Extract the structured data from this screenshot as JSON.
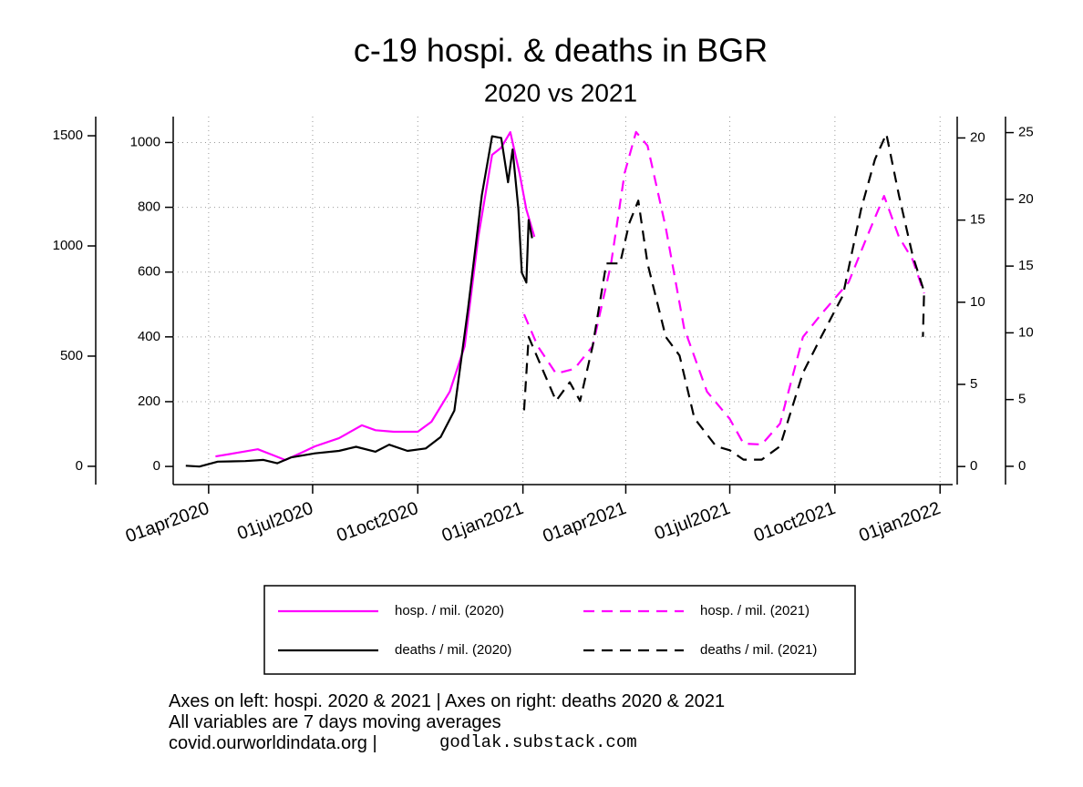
{
  "chart_data": {
    "type": "line",
    "title": "c-19 hospi. & deaths in BGR",
    "subtitle": "2020 vs 2021",
    "xlim": [
      "2020-03-01",
      "2022-01-12"
    ],
    "xticks": [
      {
        "value": "2020-04-01",
        "label": "01apr2020"
      },
      {
        "value": "2020-07-01",
        "label": "01jul2020"
      },
      {
        "value": "2020-10-01",
        "label": "01oct2020"
      },
      {
        "value": "2021-01-01",
        "label": "01jan2021"
      },
      {
        "value": "2021-04-01",
        "label": "01apr2021"
      },
      {
        "value": "2021-07-01",
        "label": "01jul2021"
      },
      {
        "value": "2021-10-01",
        "label": "01oct2021"
      },
      {
        "value": "2022-01-01",
        "label": "01jan2022"
      }
    ],
    "y_axes": [
      {
        "side": "left",
        "ylim": [
          -83,
          1587
        ],
        "yticks": [
          0,
          500,
          1000,
          1500
        ]
      },
      {
        "side": "left",
        "ylim": [
          -56,
          1080
        ],
        "yticks": [
          0,
          200,
          400,
          600,
          800,
          1000
        ],
        "grid": true
      },
      {
        "side": "right",
        "ylim": [
          -1.1,
          21.3
        ],
        "yticks": [
          0,
          5,
          10,
          15,
          20
        ]
      },
      {
        "side": "right",
        "ylim": [
          -1.37,
          26.2
        ],
        "yticks": [
          0,
          5,
          10,
          15,
          20,
          25
        ]
      }
    ],
    "grid": true,
    "series": [
      {
        "name": "hosp. / mil. (2020)",
        "color": "#ff00ff",
        "dashed": false,
        "axis": 1,
        "x": [
          "2020-04-07",
          "2020-04-26",
          "2020-05-14",
          "2020-05-28",
          "2020-06-07",
          "2020-06-21",
          "2020-07-03",
          "2020-07-24",
          "2020-08-13",
          "2020-08-25",
          "2020-09-10",
          "2020-10-01",
          "2020-10-13",
          "2020-10-29",
          "2020-11-11",
          "2020-11-23",
          "2020-12-05",
          "2020-12-13",
          "2020-12-21",
          "2020-12-29",
          "2021-01-04",
          "2021-01-11"
        ],
        "values": [
          31,
          42,
          53,
          34,
          20,
          42,
          62,
          87,
          127,
          112,
          107,
          107,
          138,
          231,
          371,
          709,
          962,
          984,
          1032,
          905,
          793,
          709
        ]
      },
      {
        "name": "deaths / mil. (2020)",
        "color": "#000000",
        "dashed": false,
        "axis": 2,
        "x": [
          "2020-03-12",
          "2020-03-24",
          "2020-04-09",
          "2020-05-03",
          "2020-05-19",
          "2020-05-31",
          "2020-06-12",
          "2020-07-03",
          "2020-07-24",
          "2020-08-08",
          "2020-08-25",
          "2020-09-06",
          "2020-09-22",
          "2020-10-08",
          "2020-10-21",
          "2020-11-02",
          "2020-11-14",
          "2020-11-26",
          "2020-12-05",
          "2020-12-13",
          "2020-12-19",
          "2020-12-23",
          "2020-12-28",
          "2020-12-31",
          "2021-01-04",
          "2021-01-06",
          "2021-01-09"
        ],
        "values": [
          0.05,
          0,
          0.3,
          0.33,
          0.4,
          0.2,
          0.55,
          0.8,
          0.95,
          1.2,
          0.9,
          1.33,
          0.95,
          1.1,
          1.8,
          3.4,
          9.6,
          16.5,
          20.1,
          20,
          17.3,
          19.3,
          15.7,
          11.8,
          11.2,
          15,
          13.9
        ]
      },
      {
        "name": "hosp. / mil. (2021)",
        "color": "#ff00ff",
        "dashed": true,
        "axis": 0,
        "x": [
          "2021-01-02",
          "2021-01-14",
          "2021-01-30",
          "2021-02-15",
          "2021-03-03",
          "2021-03-19",
          "2021-03-31",
          "2021-04-10",
          "2021-04-20",
          "2021-05-06",
          "2021-05-22",
          "2021-06-11",
          "2021-07-01",
          "2021-07-13",
          "2021-07-29",
          "2021-08-14",
          "2021-09-03",
          "2021-09-19",
          "2021-10-13",
          "2021-10-29",
          "2021-11-13",
          "2021-11-26",
          "2021-12-08",
          "2021-12-18"
        ],
        "values": [
          690,
          545,
          421,
          442,
          545,
          917,
          1331,
          1517,
          1455,
          1083,
          628,
          339,
          215,
          103,
          99,
          194,
          587,
          690,
          835,
          1041,
          1227,
          1041,
          938,
          785
        ]
      },
      {
        "name": "deaths / mil. (2021)",
        "color": "#000000",
        "dashed": true,
        "axis": 3,
        "x": [
          "2021-01-02",
          "2021-01-06",
          "2021-01-18",
          "2021-01-30",
          "2021-02-11",
          "2021-02-20",
          "2021-03-03",
          "2021-03-15",
          "2021-03-27",
          "2021-04-04",
          "2021-04-12",
          "2021-04-20",
          "2021-05-06",
          "2021-05-18",
          "2021-05-31",
          "2021-06-19",
          "2021-07-01",
          "2021-07-13",
          "2021-07-29",
          "2021-08-14",
          "2021-09-03",
          "2021-09-19",
          "2021-10-08",
          "2021-10-24",
          "2021-11-05",
          "2021-11-15",
          "2021-11-26",
          "2021-12-08",
          "2021-12-18",
          "2021-12-17"
        ],
        "values": [
          4.2,
          9.7,
          7.3,
          4.9,
          6.3,
          4.9,
          9.0,
          15.2,
          15.2,
          18.2,
          19.9,
          15.2,
          9.7,
          8.3,
          3.6,
          1.5,
          1.2,
          0.5,
          0.5,
          1.5,
          7.0,
          9.7,
          12.8,
          19.3,
          23.0,
          24.9,
          20.3,
          15.8,
          13.1,
          9.7
        ]
      }
    ],
    "notes": [
      "Axes on left: hospi. 2020 & 2021 | Axes on right: deaths 2020 & 2021",
      "All variables are 7 days moving averages",
      "covid.ourworldindata.org |"
    ],
    "credit": "godlak.substack.com"
  }
}
